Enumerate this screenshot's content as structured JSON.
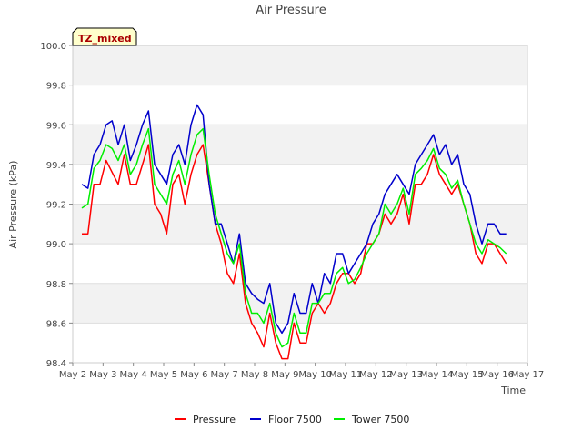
{
  "chart_data": {
    "type": "line",
    "title": "Air Pressure",
    "xlabel": "Time",
    "ylabel": "Air Pressure (kPa)",
    "annotation": "TZ_mixed",
    "ylim": [
      98.4,
      100.0
    ],
    "xlim": [
      0,
      15
    ],
    "y_ticks": [
      "98.4",
      "98.6",
      "98.8",
      "99.0",
      "99.2",
      "99.4",
      "99.6",
      "99.8",
      "100.0"
    ],
    "x_ticks": [
      "May 2",
      "May 3",
      "May 4",
      "May 5",
      "May 6",
      "May 7",
      "May 8",
      "May 9",
      "May 10",
      "May 11",
      "May 12",
      "May 13",
      "May 14",
      "May 15",
      "May 16",
      "May 17"
    ],
    "grid": true,
    "legend_position": "bottom",
    "x_unit": "days after May 2",
    "series": [
      {
        "name": "Pressure",
        "color": "#ff0000",
        "x": [
          0.3,
          0.5,
          0.7,
          0.9,
          1.1,
          1.3,
          1.5,
          1.7,
          1.9,
          2.1,
          2.3,
          2.5,
          2.7,
          2.9,
          3.1,
          3.3,
          3.5,
          3.7,
          3.9,
          4.1,
          4.3,
          4.5,
          4.7,
          4.9,
          5.1,
          5.3,
          5.5,
          5.7,
          5.9,
          6.1,
          6.3,
          6.5,
          6.7,
          6.9,
          7.1,
          7.3,
          7.5,
          7.7,
          7.9,
          8.1,
          8.3,
          8.5,
          8.7,
          8.9,
          9.1,
          9.3,
          9.5,
          9.7,
          9.9,
          10.1,
          10.3,
          10.5,
          10.7,
          10.9,
          11.1,
          11.3,
          11.5,
          11.7,
          11.9,
          12.1,
          12.3,
          12.5,
          12.7,
          12.9,
          13.1,
          13.3,
          13.5,
          13.7,
          13.9,
          14.1,
          14.3
        ],
        "y": [
          99.05,
          99.05,
          99.3,
          99.3,
          99.42,
          99.36,
          99.3,
          99.45,
          99.3,
          99.3,
          99.4,
          99.5,
          99.2,
          99.15,
          99.05,
          99.3,
          99.35,
          99.2,
          99.35,
          99.45,
          99.5,
          99.3,
          99.1,
          99.0,
          98.85,
          98.8,
          98.95,
          98.7,
          98.6,
          98.55,
          98.48,
          98.65,
          98.5,
          98.42,
          98.42,
          98.6,
          98.5,
          98.5,
          98.65,
          98.7,
          98.65,
          98.7,
          98.8,
          98.85,
          98.85,
          98.8,
          98.85,
          99.0,
          99.0,
          99.05,
          99.15,
          99.1,
          99.15,
          99.25,
          99.1,
          99.3,
          99.3,
          99.35,
          99.45,
          99.35,
          99.3,
          99.25,
          99.3,
          99.2,
          99.1,
          98.95,
          98.9,
          99.0,
          99.0,
          98.95,
          98.9
        ]
      },
      {
        "name": "Floor 7500",
        "color": "#0000cc",
        "x": [
          0.3,
          0.5,
          0.7,
          0.9,
          1.1,
          1.3,
          1.5,
          1.7,
          1.9,
          2.1,
          2.3,
          2.5,
          2.7,
          2.9,
          3.1,
          3.3,
          3.5,
          3.7,
          3.9,
          4.1,
          4.3,
          4.5,
          4.7,
          4.9,
          5.1,
          5.3,
          5.5,
          5.7,
          5.9,
          6.1,
          6.3,
          6.5,
          6.7,
          6.9,
          7.1,
          7.3,
          7.5,
          7.7,
          7.9,
          8.1,
          8.3,
          8.5,
          8.7,
          8.9,
          9.1,
          9.3,
          9.5,
          9.7,
          9.9,
          10.1,
          10.3,
          10.5,
          10.7,
          10.9,
          11.1,
          11.3,
          11.5,
          11.7,
          11.9,
          12.1,
          12.3,
          12.5,
          12.7,
          12.9,
          13.1,
          13.3,
          13.5,
          13.7,
          13.9,
          14.1,
          14.3
        ],
        "y": [
          99.3,
          99.28,
          99.45,
          99.5,
          99.6,
          99.62,
          99.5,
          99.6,
          99.42,
          99.5,
          99.6,
          99.67,
          99.4,
          99.35,
          99.3,
          99.45,
          99.5,
          99.4,
          99.6,
          99.7,
          99.65,
          99.3,
          99.1,
          99.1,
          99.0,
          98.9,
          99.05,
          98.8,
          98.75,
          98.72,
          98.7,
          98.8,
          98.6,
          98.55,
          98.6,
          98.75,
          98.65,
          98.65,
          98.8,
          98.7,
          98.85,
          98.8,
          98.95,
          98.95,
          98.85,
          98.9,
          98.95,
          99.0,
          99.1,
          99.15,
          99.25,
          99.3,
          99.35,
          99.3,
          99.25,
          99.4,
          99.45,
          99.5,
          99.55,
          99.45,
          99.5,
          99.4,
          99.45,
          99.3,
          99.25,
          99.1,
          99.0,
          99.1,
          99.1,
          99.05,
          99.05
        ]
      },
      {
        "name": "Tower 7500",
        "color": "#00ee00",
        "x": [
          0.3,
          0.5,
          0.7,
          0.9,
          1.1,
          1.3,
          1.5,
          1.7,
          1.9,
          2.1,
          2.3,
          2.5,
          2.7,
          2.9,
          3.1,
          3.3,
          3.5,
          3.7,
          3.9,
          4.1,
          4.3,
          4.5,
          4.7,
          4.9,
          5.1,
          5.3,
          5.5,
          5.7,
          5.9,
          6.1,
          6.3,
          6.5,
          6.7,
          6.9,
          7.1,
          7.3,
          7.5,
          7.7,
          7.9,
          8.1,
          8.3,
          8.5,
          8.7,
          8.9,
          9.1,
          9.3,
          9.5,
          9.7,
          9.9,
          10.1,
          10.3,
          10.5,
          10.7,
          10.9,
          11.1,
          11.3,
          11.5,
          11.7,
          11.9,
          12.1,
          12.3,
          12.5,
          12.7,
          12.9,
          13.1,
          13.3,
          13.5,
          13.7,
          13.9,
          14.1,
          14.3
        ],
        "y": [
          99.18,
          99.2,
          99.38,
          99.42,
          99.5,
          99.48,
          99.42,
          99.5,
          99.35,
          99.4,
          99.5,
          99.58,
          99.3,
          99.25,
          99.2,
          99.35,
          99.42,
          99.3,
          99.45,
          99.55,
          99.58,
          99.35,
          99.15,
          99.05,
          98.95,
          98.9,
          99.0,
          98.75,
          98.65,
          98.65,
          98.6,
          98.7,
          98.55,
          98.48,
          98.5,
          98.65,
          98.55,
          98.55,
          98.7,
          98.7,
          98.75,
          98.75,
          98.85,
          98.88,
          98.8,
          98.82,
          98.88,
          98.95,
          99.0,
          99.05,
          99.2,
          99.15,
          99.2,
          99.28,
          99.15,
          99.35,
          99.38,
          99.42,
          99.48,
          99.38,
          99.35,
          99.28,
          99.32,
          99.2,
          99.1,
          99.0,
          98.95,
          99.02,
          99.0,
          98.98,
          98.95
        ]
      }
    ]
  }
}
